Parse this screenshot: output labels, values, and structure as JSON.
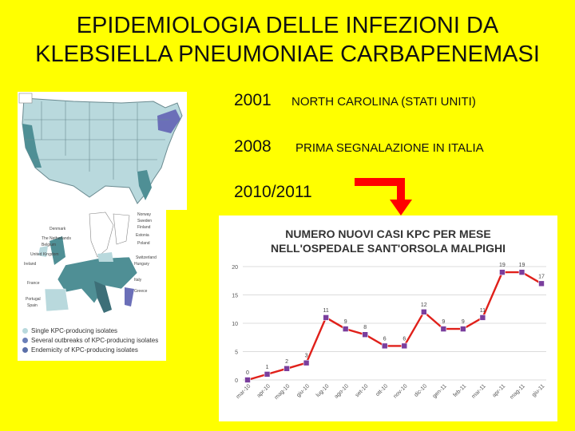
{
  "slide": {
    "title_line1": "EPIDEMIOLOGIA DELLE INFEZIONI DA",
    "title_line2": "KLEBSIELLA PNEUMONIAE CARBAPENEMASI",
    "entries": [
      {
        "year": "2001",
        "text": "NORTH CAROLINA (STATI UNITI)"
      },
      {
        "year": "2008",
        "text": "PRIMA SEGNALAZIONE IN  ITALIA"
      },
      {
        "year": "2010/2011",
        "text": ""
      }
    ],
    "arrow_color": "#ff0000"
  },
  "eu_map": {
    "countries": [
      "Norway",
      "Sweden",
      "Finland",
      "Denmark",
      "Estonia",
      "The Netherlands",
      "Poland",
      "Belgium",
      "United Kingdom",
      "Switzerland",
      "Hungary",
      "Ireland",
      "Italy",
      "France",
      "Greece",
      "Portugal",
      "Spain"
    ],
    "legend": [
      {
        "label": "Single KPC-producing isolates",
        "color": "#b9d9dd"
      },
      {
        "label": "Several outbreaks of KPC-producing isolates",
        "color": "#6b7fb8"
      },
      {
        "label": "Endemicity of KPC-producing isolates",
        "color": "#5b6fa8"
      }
    ]
  },
  "chart_data": {
    "type": "line",
    "title_line1": "NUMERO NUOVI CASI KPC PER MESE",
    "title_line2": "NELL'OSPEDALE SANT'ORSOLA MALPIGHI",
    "categories": [
      "mar-10",
      "apr-10",
      "mag-10",
      "giu-10",
      "lug-10",
      "ago-10",
      "set-10",
      "ott-10",
      "nov-10",
      "dic-10",
      "gen-11",
      "feb-11",
      "mar-11",
      "apr-11",
      "mag-11",
      "giu-11"
    ],
    "values": [
      0,
      1,
      2,
      3,
      11,
      9,
      8,
      6,
      6,
      12,
      9,
      9,
      11,
      19,
      19,
      17
    ],
    "data_labels": [
      "0",
      "1",
      "2",
      "3",
      "11",
      "9",
      "8",
      "6",
      "6",
      "12",
      "9",
      "9",
      "11",
      "19",
      "19",
      "17"
    ],
    "yticks": [
      "0",
      "5",
      "10",
      "15",
      "20"
    ],
    "ylim": [
      0,
      20
    ],
    "line_color": "#e0201a",
    "marker_color": "#7a3e9d",
    "grid": true
  }
}
